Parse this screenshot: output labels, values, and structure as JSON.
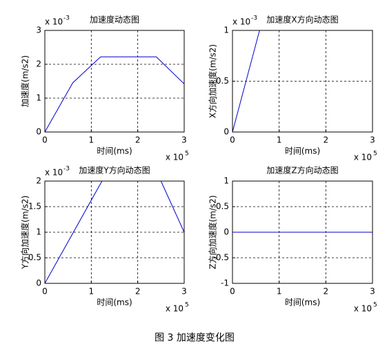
{
  "chart_data": [
    {
      "type": "line",
      "title": "加速度动态图",
      "xlabel": "时间(ms)",
      "ylabel": "加速度(m/s2)",
      "x_multiplier": {
        "text": "x 10",
        "exponent": "5"
      },
      "y_multiplier": {
        "text": "x 10",
        "exponent": "-3"
      },
      "xlim": [
        0,
        3
      ],
      "ylim": [
        0,
        3
      ],
      "xticks": [
        0,
        1,
        2,
        3
      ],
      "yticks": [
        0,
        1,
        2,
        3
      ],
      "grid": true,
      "color": "#0000cc",
      "x": [
        0,
        0.6,
        1.2,
        2.4,
        3
      ],
      "values": [
        0,
        1.45,
        2.22,
        2.22,
        1.42
      ]
    },
    {
      "type": "line",
      "title": "加速度X方向动态图",
      "xlabel": "时间(ms)",
      "ylabel": "X方向加速度(m/s2)",
      "x_multiplier": {
        "text": "x 10",
        "exponent": "5"
      },
      "y_multiplier": {
        "text": "x 10",
        "exponent": "-3"
      },
      "xlim": [
        0,
        3
      ],
      "ylim": [
        0,
        1
      ],
      "xticks": [
        0,
        1,
        2,
        3
      ],
      "yticks": [
        0,
        0.5,
        1
      ],
      "grid": true,
      "color": "#0000cc",
      "x": [
        0,
        0.58
      ],
      "values": [
        0,
        1
      ]
    },
    {
      "type": "line",
      "title": "加速度Y方向动态图",
      "xlabel": "时间(ms)",
      "ylabel": "Y方向加速度(m/s2)",
      "x_multiplier": {
        "text": "x 10",
        "exponent": "5"
      },
      "y_multiplier": {
        "text": "x 10",
        "exponent": "-3"
      },
      "xlim": [
        0,
        3
      ],
      "ylim": [
        0,
        2
      ],
      "xticks": [
        0,
        1,
        2,
        3
      ],
      "yticks": [
        0,
        0.5,
        1,
        1.5,
        2
      ],
      "grid": true,
      "color": "#0000cc",
      "x": [
        0,
        1.23,
        2.5,
        3
      ],
      "values": [
        0,
        2,
        2,
        1
      ]
    },
    {
      "type": "line",
      "title": "加速度Z方向动态图",
      "xlabel": "时间(ms)",
      "ylabel": "Z方向加速度(m/s2)",
      "x_multiplier": {
        "text": "x 10",
        "exponent": "5"
      },
      "xlim": [
        0,
        3
      ],
      "ylim": [
        -1,
        1
      ],
      "xticks": [
        0,
        1,
        2,
        3
      ],
      "yticks": [
        -1,
        -0.5,
        0,
        0.5,
        1
      ],
      "grid": true,
      "color": "#0000cc",
      "x": [
        0,
        3
      ],
      "values": [
        0,
        0
      ]
    }
  ],
  "caption": "图 3  加速度变化图"
}
